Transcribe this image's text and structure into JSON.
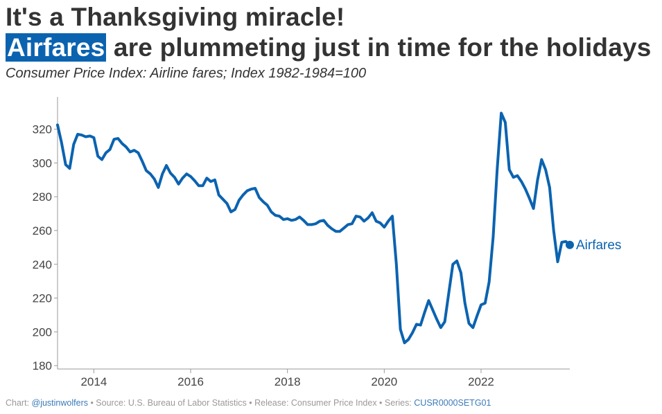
{
  "header": {
    "title_line1": "It's a Thanksgiving miracle!",
    "title_highlight": "Airfares",
    "title_line2_rest": " are plummeting just in time for the holidays",
    "subtitle": "Consumer Price Index: Airline fares; Index 1982-1984=100"
  },
  "footer": {
    "chart_prefix": "Chart: ",
    "chart_handle": "@justinwolfers",
    "source": " • Source: U.S. Bureau of Labor Statistics • Release: Consumer Price Index • Series: ",
    "series_id": "CUSR0000SETG01"
  },
  "colors": {
    "line": "#0b63b0",
    "highlight": "#0b63b0",
    "axis_text": "#444444",
    "axis": "#999999"
  },
  "chart_data": {
    "type": "line",
    "ylim": [
      178,
      335
    ],
    "xlim": [
      2013.25,
      2023.8333
    ],
    "y_ticks": [
      180,
      200,
      220,
      240,
      260,
      280,
      300,
      320
    ],
    "x_ticks": [
      2014,
      2016,
      2018,
      2020,
      2022
    ],
    "grid": false,
    "series": [
      {
        "name": "Airfares",
        "x": [
          2013.25,
          2013.333,
          2013.417,
          2013.5,
          2013.583,
          2013.667,
          2013.75,
          2013.833,
          2013.917,
          2014.0,
          2014.083,
          2014.167,
          2014.25,
          2014.333,
          2014.417,
          2014.5,
          2014.583,
          2014.667,
          2014.75,
          2014.833,
          2014.917,
          2015.0,
          2015.083,
          2015.167,
          2015.25,
          2015.333,
          2015.417,
          2015.5,
          2015.583,
          2015.667,
          2015.75,
          2015.833,
          2015.917,
          2016.0,
          2016.083,
          2016.167,
          2016.25,
          2016.333,
          2016.417,
          2016.5,
          2016.583,
          2016.667,
          2016.75,
          2016.833,
          2016.917,
          2017.0,
          2017.083,
          2017.167,
          2017.25,
          2017.333,
          2017.417,
          2017.5,
          2017.583,
          2017.667,
          2017.75,
          2017.833,
          2017.917,
          2018.0,
          2018.083,
          2018.167,
          2018.25,
          2018.333,
          2018.417,
          2018.5,
          2018.583,
          2018.667,
          2018.75,
          2018.833,
          2018.917,
          2019.0,
          2019.083,
          2019.167,
          2019.25,
          2019.333,
          2019.417,
          2019.5,
          2019.583,
          2019.667,
          2019.75,
          2019.833,
          2019.917,
          2020.0,
          2020.083,
          2020.167,
          2020.25,
          2020.333,
          2020.417,
          2020.5,
          2020.583,
          2020.667,
          2020.75,
          2020.833,
          2020.917,
          2021.0,
          2021.083,
          2021.167,
          2021.25,
          2021.333,
          2021.417,
          2021.5,
          2021.583,
          2021.667,
          2021.75,
          2021.833,
          2021.917,
          2022.0,
          2022.083,
          2022.167,
          2022.25,
          2022.333,
          2022.417,
          2022.5,
          2022.583,
          2022.667,
          2022.75,
          2022.833,
          2022.917,
          2023.0,
          2023.083,
          2023.167,
          2023.25,
          2023.333,
          2023.417,
          2023.5,
          2023.583,
          2023.667,
          2023.75,
          2023.833
        ],
        "values": [
          322.5,
          312,
          299,
          296.8,
          311,
          317,
          316.5,
          315.5,
          316,
          315,
          304,
          302,
          306,
          308,
          314,
          314.5,
          311.5,
          309.5,
          306.5,
          307.5,
          306,
          301,
          295.5,
          293.5,
          290.5,
          285.5,
          293.5,
          298.5,
          294,
          291.5,
          287.5,
          291,
          293.5,
          292,
          289.5,
          286.5,
          286.5,
          291,
          289,
          290,
          281,
          278.5,
          276,
          271,
          272.5,
          278,
          281,
          283.5,
          284.5,
          285,
          279.5,
          277,
          275,
          271,
          269,
          268.5,
          266.5,
          267,
          266,
          266.5,
          268,
          266,
          263.5,
          263.5,
          264,
          265.5,
          266,
          263,
          261,
          259.5,
          259.5,
          261.5,
          263.5,
          264,
          268.5,
          268,
          265.5,
          267.5,
          270.5,
          265.5,
          264.5,
          262,
          265.5,
          268.5,
          240,
          201.5,
          193.5,
          195.5,
          199.5,
          204.5,
          204,
          211.5,
          218.5,
          213,
          207.5,
          202.5,
          206,
          223,
          240,
          242,
          235,
          217,
          205,
          202.5,
          209.5,
          216,
          217,
          229.5,
          256,
          296,
          329.5,
          324,
          296,
          291.5,
          292.5,
          289,
          284.5,
          279,
          273,
          290,
          302,
          296,
          285.5,
          260,
          241.5,
          253,
          253.5,
          251.5
        ]
      }
    ]
  }
}
